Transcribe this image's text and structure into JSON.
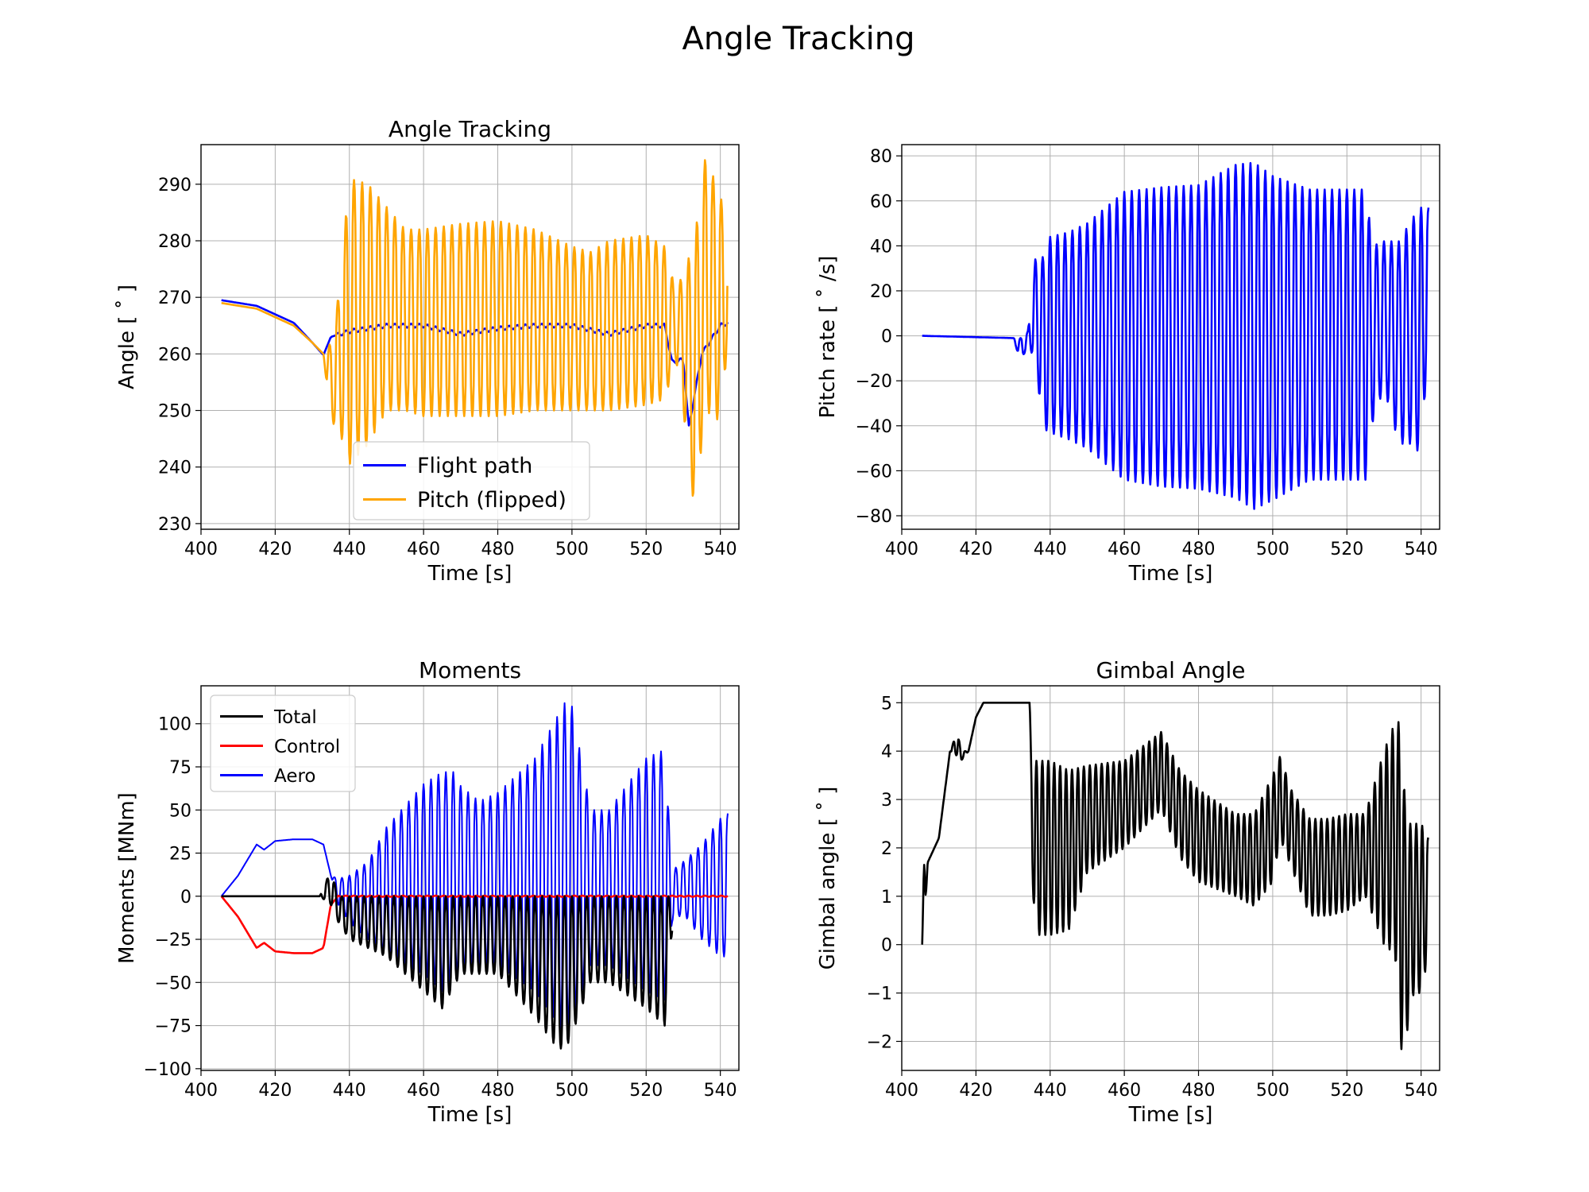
{
  "figure": {
    "suptitle": "Angle Tracking"
  },
  "chart_data": [
    {
      "type": "line",
      "title": "Angle Tracking",
      "xlabel": "Time [s]",
      "ylabel": "Angle [$^\\circ$]",
      "ylabel_display": "Angle [ ˚ ]",
      "xlim": [
        400,
        545
      ],
      "ylim": [
        229,
        297
      ],
      "xticks": [
        400,
        420,
        440,
        460,
        480,
        500,
        520,
        540
      ],
      "yticks": [
        230,
        240,
        250,
        260,
        270,
        280,
        290
      ],
      "grid": true,
      "legend": {
        "placement": "lower-center",
        "entries": [
          "Flight path",
          "Pitch (flipped)"
        ]
      },
      "series": [
        {
          "name": "Flight path",
          "color": "#0000ff",
          "style": "smooth-then-small-oscillation",
          "x": [
            405.5,
            415,
            425,
            430,
            433,
            435,
            440,
            450,
            460,
            470,
            480,
            490,
            500,
            510,
            520,
            525,
            527,
            530,
            531.5,
            535,
            540,
            542
          ],
          "y": [
            269.5,
            268.5,
            265.5,
            262.0,
            259.8,
            263.0,
            264.0,
            265.0,
            265.0,
            263.5,
            264.5,
            265.0,
            265.0,
            263.5,
            265.0,
            265.0,
            258.5,
            259.0,
            247.0,
            260.0,
            265.0,
            265.5
          ]
        },
        {
          "name": "Pitch (flipped)",
          "color": "#ffa500",
          "style": "oscillation-envelope",
          "x": [
            405.5,
            415,
            425,
            430,
            433,
            435,
            437,
            440,
            445,
            450,
            455,
            460,
            470,
            480,
            490,
            500,
            505,
            510,
            520,
            525,
            528,
            531,
            533,
            536,
            540,
            542
          ],
          "upper": [
            269.0,
            268.0,
            265.0,
            262.0,
            260.0,
            262.0,
            270.0,
            291.0,
            290.0,
            286.0,
            282.0,
            282.0,
            283.0,
            283.5,
            282.0,
            279.0,
            278.0,
            280.0,
            281.0,
            279.0,
            271.0,
            276.0,
            280.0,
            295.0,
            288.0,
            282.5
          ],
          "lower": [
            269.0,
            268.0,
            265.0,
            262.0,
            260.0,
            248.0,
            247.0,
            240.5,
            244.0,
            250.0,
            250.0,
            249.0,
            249.0,
            249.0,
            250.0,
            250.0,
            250.0,
            250.0,
            251.0,
            252.0,
            259.0,
            245.0,
            232.0,
            250.0,
            248.0,
            262.0
          ],
          "oscillation_period_s": 2.2
        }
      ]
    },
    {
      "type": "line",
      "title": "",
      "xlabel": "Time [s]",
      "ylabel": "Pitch rate [$^\\circ$/s]",
      "ylabel_display": "Pitch rate [ ˚ /s]",
      "xlim": [
        400,
        545
      ],
      "ylim": [
        -86,
        85
      ],
      "xticks": [
        400,
        420,
        440,
        460,
        480,
        500,
        520,
        540
      ],
      "yticks": [
        -80,
        -60,
        -40,
        -20,
        0,
        20,
        40,
        60,
        80
      ],
      "grid": true,
      "series": [
        {
          "name": "",
          "color": "#0000ff",
          "style": "oscillation-envelope",
          "x": [
            405.5,
            430,
            432,
            434,
            436,
            438,
            440,
            445,
            450,
            460,
            470,
            480,
            490,
            495,
            500,
            510,
            520,
            525,
            527,
            530,
            534,
            538,
            540,
            542
          ],
          "upper": [
            0.0,
            -1.0,
            -1.0,
            2.0,
            34.0,
            35.0,
            44.0,
            46.0,
            50.0,
            64.0,
            66.0,
            67.0,
            76.0,
            77.0,
            71.0,
            65.0,
            65.0,
            65.0,
            40.0,
            42.0,
            42.0,
            53.0,
            57.0,
            57.0
          ],
          "lower": [
            0.0,
            -1.0,
            -11.0,
            -5.0,
            -10.0,
            -41.0,
            -43.0,
            -46.0,
            -50.0,
            -64.0,
            -67.0,
            -68.0,
            -72.0,
            -77.0,
            -73.0,
            -64.0,
            -64.0,
            -64.0,
            -38.0,
            -23.0,
            -48.0,
            -48.0,
            -54.0,
            0.0
          ],
          "oscillation_period_s": 2.0
        }
      ]
    },
    {
      "type": "line",
      "title": "Moments",
      "xlabel": "Time [s]",
      "ylabel": "Moments [MNm]",
      "xlim": [
        400,
        545
      ],
      "ylim": [
        -101,
        122
      ],
      "xticks": [
        400,
        420,
        440,
        460,
        480,
        500,
        520,
        540
      ],
      "yticks": [
        -100,
        -75,
        -50,
        -25,
        0,
        25,
        50,
        75,
        100
      ],
      "grid": true,
      "legend": {
        "placement": "upper-left",
        "entries": [
          "Total",
          "Control",
          "Aero"
        ]
      },
      "series": [
        {
          "name": "Aero",
          "color": "#0000ff",
          "style": "oscillation-envelope",
          "x": [
            405.5,
            410,
            415,
            417,
            420,
            425,
            430,
            433,
            435,
            437,
            440,
            445,
            450,
            460,
            465,
            468,
            470,
            475,
            480,
            490,
            495,
            498,
            500,
            505,
            510,
            520,
            525,
            527,
            530,
            535,
            540,
            542
          ],
          "upper": [
            0.0,
            12.0,
            30.0,
            27.0,
            32.0,
            33.0,
            33.0,
            30.0,
            12.0,
            10.0,
            12.0,
            20.0,
            40.0,
            65.0,
            72.0,
            72.0,
            64.0,
            55.0,
            60.0,
            80.0,
            100.0,
            112.0,
            110.0,
            50.0,
            50.0,
            80.0,
            85.0,
            15.0,
            20.0,
            30.0,
            45.0,
            48.0
          ],
          "lower": [
            0.0,
            12.0,
            30.0,
            27.0,
            32.0,
            33.0,
            33.0,
            30.0,
            12.0,
            -5.0,
            -15.0,
            -25.0,
            -35.0,
            -45.0,
            -55.0,
            -50.0,
            -45.0,
            -40.0,
            -40.0,
            -55.0,
            -70.0,
            -80.0,
            -75.0,
            -40.0,
            -40.0,
            -55.0,
            -60.0,
            -15.0,
            -10.0,
            -25.0,
            -35.0,
            -35.0
          ],
          "oscillation_period_s": 2.0
        },
        {
          "name": "Control",
          "color": "#ff0000",
          "style": "smooth-then-small-oscillation",
          "x": [
            405.5,
            410,
            415,
            417,
            420,
            425,
            430,
            433,
            435,
            437,
            440,
            460,
            480,
            500,
            520,
            525,
            530,
            535,
            540,
            542
          ],
          "y": [
            0.0,
            -12.0,
            -30.0,
            -27.0,
            -32.0,
            -33.0,
            -33.0,
            -30.0,
            -5.0,
            0.0,
            0.0,
            0.0,
            0.0,
            0.0,
            0.0,
            0.0,
            0.0,
            0.0,
            0.0,
            0.0
          ]
        },
        {
          "name": "Total",
          "color": "#000000",
          "style": "oscillation-envelope",
          "x": [
            405.5,
            415,
            425,
            432,
            435,
            437,
            440,
            450,
            460,
            465,
            470,
            480,
            490,
            495,
            498,
            500,
            505,
            510,
            520,
            525,
            527
          ],
          "upper": [
            0.0,
            0.0,
            0.0,
            0.0,
            15.0,
            0.0,
            0.0,
            0.0,
            0.0,
            0.0,
            0.0,
            0.0,
            0.0,
            0.0,
            0.0,
            0.0,
            0.0,
            0.0,
            0.0,
            0.0,
            0.0
          ],
          "lower": [
            0.0,
            0.0,
            0.0,
            0.0,
            -5.0,
            -15.0,
            -25.0,
            -35.0,
            -55.0,
            -65.0,
            -45.0,
            -45.0,
            -70.0,
            -85.0,
            -90.0,
            -80.0,
            -50.0,
            -50.0,
            -65.0,
            -75.0,
            -20.0
          ],
          "oscillation_period_s": 2.0
        }
      ]
    },
    {
      "type": "line",
      "title": "Gimbal Angle",
      "xlabel": "Time [s]",
      "ylabel": "Gimbal angle [$^\\circ$]",
      "ylabel_display": "Gimbal angle [ ˚ ]",
      "xlim": [
        400,
        545
      ],
      "ylim": [
        -2.6,
        5.35
      ],
      "xticks": [
        400,
        420,
        440,
        460,
        480,
        500,
        520,
        540
      ],
      "yticks": [
        -2,
        -1,
        0,
        1,
        2,
        3,
        4,
        5
      ],
      "grid": true,
      "series": [
        {
          "name": "",
          "color": "#000000",
          "style": "oscillation-envelope",
          "x": [
            405.5,
            406,
            407,
            410,
            413,
            415,
            416,
            418,
            420,
            422,
            425,
            430,
            434.5,
            435,
            436,
            440,
            445,
            450,
            460,
            470,
            475,
            480,
            490,
            495,
            500,
            502,
            505,
            510,
            515,
            520,
            525,
            530,
            533,
            534.5,
            536,
            538,
            540,
            542
          ],
          "upper": [
            0.0,
            1.7,
            1.7,
            2.2,
            4.0,
            4.4,
            4.0,
            4.0,
            4.7,
            5.0,
            5.0,
            5.0,
            5.0,
            3.5,
            3.8,
            3.8,
            3.6,
            3.7,
            3.8,
            4.4,
            3.6,
            3.2,
            2.7,
            2.7,
            3.5,
            3.9,
            3.2,
            2.6,
            2.6,
            2.7,
            2.7,
            4.0,
            4.6,
            4.6,
            2.5,
            2.5,
            2.5,
            2.2
          ],
          "lower": [
            0.0,
            0.3,
            1.7,
            2.2,
            4.0,
            3.9,
            3.8,
            4.0,
            4.7,
            5.0,
            5.0,
            5.0,
            5.0,
            1.7,
            0.2,
            0.2,
            0.3,
            1.5,
            2.0,
            2.8,
            1.8,
            1.3,
            1.0,
            0.8,
            1.3,
            2.2,
            1.6,
            0.6,
            0.6,
            0.7,
            1.0,
            0.0,
            -0.2,
            -2.2,
            -1.9,
            -1.0,
            -1.0,
            -0.2
          ],
          "oscillation_period_s": 1.6
        }
      ]
    }
  ]
}
